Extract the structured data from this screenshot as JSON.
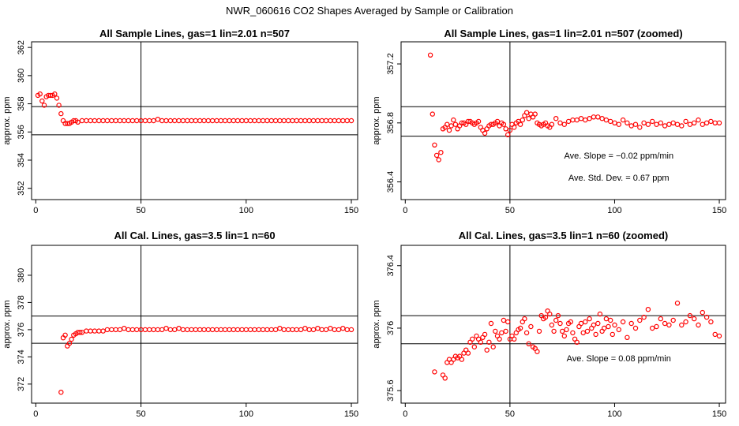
{
  "figure": {
    "title": "NWR_060616  CO2 Shapes Averaged by Sample or Calibration"
  },
  "chart_data": [
    {
      "type": "scatter",
      "title": "All Sample Lines, gas=1 lin=2.01 n=507",
      "xlabel": "",
      "ylabel": "approx. ppm",
      "xlim": [
        -2,
        153
      ],
      "ylim": [
        351.2,
        362.4
      ],
      "xticks": [
        0,
        50,
        100,
        150
      ],
      "yticks": [
        352,
        354,
        356,
        358,
        360,
        362
      ],
      "hlines": [
        357.8,
        355.8
      ],
      "vlines": [
        50
      ],
      "annotations": [],
      "series": [
        {
          "marker": "open-circle",
          "color": "#ff0000",
          "x": [
            1,
            2,
            3,
            4,
            5,
            6,
            7,
            8,
            9,
            10,
            11,
            12,
            13,
            14,
            15,
            16,
            17,
            18,
            19,
            20,
            22,
            24,
            26,
            28,
            30,
            32,
            34,
            36,
            38,
            40,
            42,
            44,
            46,
            48,
            50,
            52,
            54,
            56,
            58,
            60,
            62,
            64,
            66,
            68,
            70,
            72,
            74,
            76,
            78,
            80,
            82,
            84,
            86,
            88,
            90,
            92,
            94,
            96,
            98,
            100,
            102,
            104,
            106,
            108,
            110,
            112,
            114,
            116,
            118,
            120,
            122,
            124,
            126,
            128,
            130,
            132,
            134,
            136,
            138,
            140,
            142,
            144,
            146,
            148,
            150
          ],
          "y": [
            358.6,
            358.7,
            358.2,
            357.9,
            358.5,
            358.6,
            358.6,
            358.6,
            358.7,
            358.4,
            357.9,
            357.3,
            356.8,
            356.6,
            356.6,
            356.6,
            356.7,
            356.8,
            356.8,
            356.7,
            356.8,
            356.8,
            356.8,
            356.8,
            356.8,
            356.8,
            356.8,
            356.8,
            356.8,
            356.8,
            356.8,
            356.8,
            356.8,
            356.8,
            356.8,
            356.8,
            356.8,
            356.8,
            356.9,
            356.8,
            356.8,
            356.8,
            356.8,
            356.8,
            356.8,
            356.8,
            356.8,
            356.8,
            356.8,
            356.8,
            356.8,
            356.8,
            356.8,
            356.8,
            356.8,
            356.8,
            356.8,
            356.8,
            356.8,
            356.8,
            356.8,
            356.8,
            356.8,
            356.8,
            356.8,
            356.8,
            356.8,
            356.8,
            356.8,
            356.8,
            356.8,
            356.8,
            356.8,
            356.8,
            356.8,
            356.8,
            356.8,
            356.8,
            356.8,
            356.8,
            356.8,
            356.8,
            356.8,
            356.8,
            356.8
          ]
        }
      ]
    },
    {
      "type": "scatter",
      "title": "All Sample Lines, gas=1 lin=2.01 n=507 (zoomed)",
      "xlabel": "",
      "ylabel": "approx. ppm",
      "xlim": [
        -2,
        153
      ],
      "ylim": [
        356.28,
        357.35
      ],
      "xticks": [
        0,
        50,
        100,
        150
      ],
      "yticks": [
        356.4,
        356.8,
        357.2
      ],
      "hlines": [
        356.91,
        356.71
      ],
      "vlines": [
        50
      ],
      "annotations": [
        "Ave. Slope =  −0.02  ppm/min",
        "Ave. Std. Dev. =  0.67  ppm"
      ],
      "series": [
        {
          "marker": "open-circle",
          "color": "#ff0000",
          "x": [
            12,
            13,
            14,
            15,
            16,
            17,
            18,
            19,
            20,
            21,
            22,
            23,
            24,
            25,
            26,
            27,
            28,
            29,
            30,
            31,
            32,
            33,
            34,
            35,
            36,
            37,
            38,
            39,
            40,
            41,
            42,
            43,
            44,
            45,
            46,
            47,
            48,
            49,
            50,
            51,
            52,
            53,
            54,
            55,
            56,
            57,
            58,
            59,
            60,
            61,
            62,
            63,
            64,
            65,
            66,
            67,
            68,
            69,
            70,
            72,
            74,
            76,
            78,
            80,
            82,
            84,
            86,
            88,
            90,
            92,
            94,
            96,
            98,
            100,
            102,
            104,
            106,
            108,
            110,
            112,
            114,
            116,
            118,
            120,
            122,
            124,
            126,
            128,
            130,
            132,
            134,
            136,
            138,
            140,
            142,
            144,
            146,
            148,
            150
          ],
          "y": [
            357.26,
            356.86,
            356.65,
            356.58,
            356.55,
            356.6,
            356.76,
            356.77,
            356.79,
            356.75,
            356.78,
            356.82,
            356.79,
            356.76,
            356.78,
            356.8,
            356.8,
            356.79,
            356.81,
            356.81,
            356.8,
            356.79,
            356.8,
            356.81,
            356.77,
            356.75,
            356.73,
            356.76,
            356.78,
            356.79,
            356.79,
            356.8,
            356.81,
            356.78,
            356.8,
            356.79,
            356.76,
            356.72,
            356.75,
            356.79,
            356.77,
            356.8,
            356.81,
            356.79,
            356.82,
            356.85,
            356.87,
            356.83,
            356.86,
            356.84,
            356.86,
            356.8,
            356.79,
            356.78,
            356.79,
            356.8,
            356.78,
            356.77,
            356.79,
            356.83,
            356.8,
            356.79,
            356.81,
            356.82,
            356.82,
            356.83,
            356.82,
            356.83,
            356.84,
            356.84,
            356.83,
            356.82,
            356.81,
            356.8,
            356.79,
            356.82,
            356.8,
            356.78,
            356.79,
            356.77,
            356.8,
            356.79,
            356.81,
            356.79,
            356.8,
            356.78,
            356.79,
            356.8,
            356.79,
            356.78,
            356.81,
            356.79,
            356.8,
            356.82,
            356.79,
            356.8,
            356.81,
            356.8,
            356.8
          ]
        }
      ]
    },
    {
      "type": "scatter",
      "title": "All Cal. Lines, gas=3.5 lin=1 n=60",
      "xlabel": "",
      "ylabel": "approx. ppm",
      "xlim": [
        -2,
        153
      ],
      "ylim": [
        370.6,
        382.2
      ],
      "xticks": [
        0,
        50,
        100,
        150
      ],
      "yticks": [
        372,
        374,
        376,
        378,
        380
      ],
      "hlines": [
        377.0,
        375.0
      ],
      "vlines": [
        50
      ],
      "annotations": [],
      "series": [
        {
          "marker": "open-circle",
          "color": "#ff0000",
          "x": [
            12,
            13,
            14,
            15,
            16,
            17,
            18,
            19,
            20,
            21,
            22,
            24,
            26,
            28,
            30,
            32,
            34,
            36,
            38,
            40,
            42,
            44,
            46,
            48,
            50,
            52,
            54,
            56,
            58,
            60,
            62,
            64,
            66,
            68,
            70,
            72,
            74,
            76,
            78,
            80,
            82,
            84,
            86,
            88,
            90,
            92,
            94,
            96,
            98,
            100,
            102,
            104,
            106,
            108,
            110,
            112,
            114,
            116,
            118,
            120,
            122,
            124,
            126,
            128,
            130,
            132,
            134,
            136,
            138,
            140,
            142,
            144,
            146,
            148,
            150
          ],
          "y": [
            371.4,
            375.4,
            375.6,
            374.8,
            375.0,
            375.3,
            375.6,
            375.7,
            375.8,
            375.8,
            375.8,
            375.9,
            375.9,
            375.9,
            375.9,
            375.9,
            376.0,
            376.0,
            376.0,
            376.0,
            376.1,
            376.0,
            376.0,
            376.0,
            376.0,
            376.0,
            376.0,
            376.0,
            376.0,
            376.0,
            376.1,
            376.0,
            376.0,
            376.1,
            376.0,
            376.0,
            376.0,
            376.0,
            376.0,
            376.0,
            376.0,
            376.0,
            376.0,
            376.0,
            376.0,
            376.0,
            376.0,
            376.0,
            376.0,
            376.0,
            376.0,
            376.0,
            376.0,
            376.0,
            376.0,
            376.0,
            376.0,
            376.1,
            376.0,
            376.0,
            376.0,
            376.0,
            376.0,
            376.1,
            376.0,
            376.0,
            376.1,
            376.0,
            376.0,
            376.1,
            376.0,
            376.0,
            376.1,
            376.0,
            376.0
          ]
        }
      ]
    },
    {
      "type": "scatter",
      "title": "All Cal. Lines, gas=3.5 lin=1 n=60 (zoomed)",
      "xlabel": "",
      "ylabel": "approx. ppm",
      "xlim": [
        -2,
        153
      ],
      "ylim": [
        375.52,
        376.53
      ],
      "xticks": [
        0,
        50,
        100,
        150
      ],
      "yticks": [
        375.6,
        376.0,
        376.4
      ],
      "hlines": [
        376.08,
        375.9
      ],
      "vlines": [
        50
      ],
      "annotations": [
        "Ave. Slope =  0.08  ppm/min"
      ],
      "series": [
        {
          "marker": "open-circle",
          "color": "#ff0000",
          "x": [
            14,
            18,
            19,
            20,
            21,
            22,
            23,
            24,
            25,
            26,
            27,
            28,
            29,
            30,
            31,
            32,
            33,
            34,
            35,
            36,
            37,
            38,
            39,
            40,
            41,
            42,
            43,
            44,
            45,
            46,
            47,
            48,
            49,
            50,
            51,
            52,
            53,
            54,
            55,
            56,
            57,
            58,
            59,
            60,
            61,
            62,
            63,
            64,
            65,
            66,
            67,
            68,
            69,
            70,
            71,
            72,
            73,
            74,
            75,
            76,
            77,
            78,
            79,
            80,
            81,
            82,
            83,
            84,
            85,
            86,
            87,
            88,
            89,
            90,
            91,
            92,
            93,
            94,
            95,
            96,
            97,
            98,
            99,
            100,
            102,
            104,
            106,
            108,
            110,
            112,
            114,
            116,
            118,
            120,
            122,
            124,
            126,
            128,
            130,
            132,
            134,
            136,
            138,
            140,
            142,
            144,
            146,
            148,
            150
          ],
          "y": [
            375.72,
            375.7,
            375.68,
            375.78,
            375.8,
            375.78,
            375.8,
            375.82,
            375.81,
            375.82,
            375.8,
            375.84,
            375.86,
            375.84,
            375.91,
            375.93,
            375.88,
            375.95,
            375.93,
            375.91,
            375.94,
            375.96,
            375.86,
            375.91,
            376.03,
            375.88,
            375.98,
            375.95,
            375.93,
            375.97,
            376.05,
            375.98,
            376.04,
            375.93,
            375.95,
            375.93,
            375.97,
            375.99,
            376.0,
            376.04,
            376.06,
            375.97,
            375.9,
            376.01,
            375.88,
            375.87,
            375.85,
            375.98,
            376.08,
            376.06,
            376.07,
            376.11,
            376.09,
            376.02,
            375.98,
            376.05,
            376.08,
            376.03,
            375.98,
            375.95,
            375.99,
            376.03,
            376.04,
            375.97,
            375.93,
            375.91,
            376.01,
            376.03,
            375.97,
            376.04,
            375.98,
            376.06,
            376.0,
            376.02,
            375.96,
            376.03,
            376.09,
            375.98,
            376.0,
            376.06,
            376.01,
            376.05,
            375.96,
            376.02,
            375.99,
            376.04,
            375.94,
            376.03,
            376.0,
            376.05,
            376.07,
            376.12,
            376.0,
            376.01,
            376.06,
            376.03,
            376.02,
            376.05,
            376.16,
            376.02,
            376.04,
            376.08,
            376.06,
            376.02,
            376.1,
            376.07,
            376.04,
            375.96,
            375.95
          ]
        }
      ]
    }
  ]
}
